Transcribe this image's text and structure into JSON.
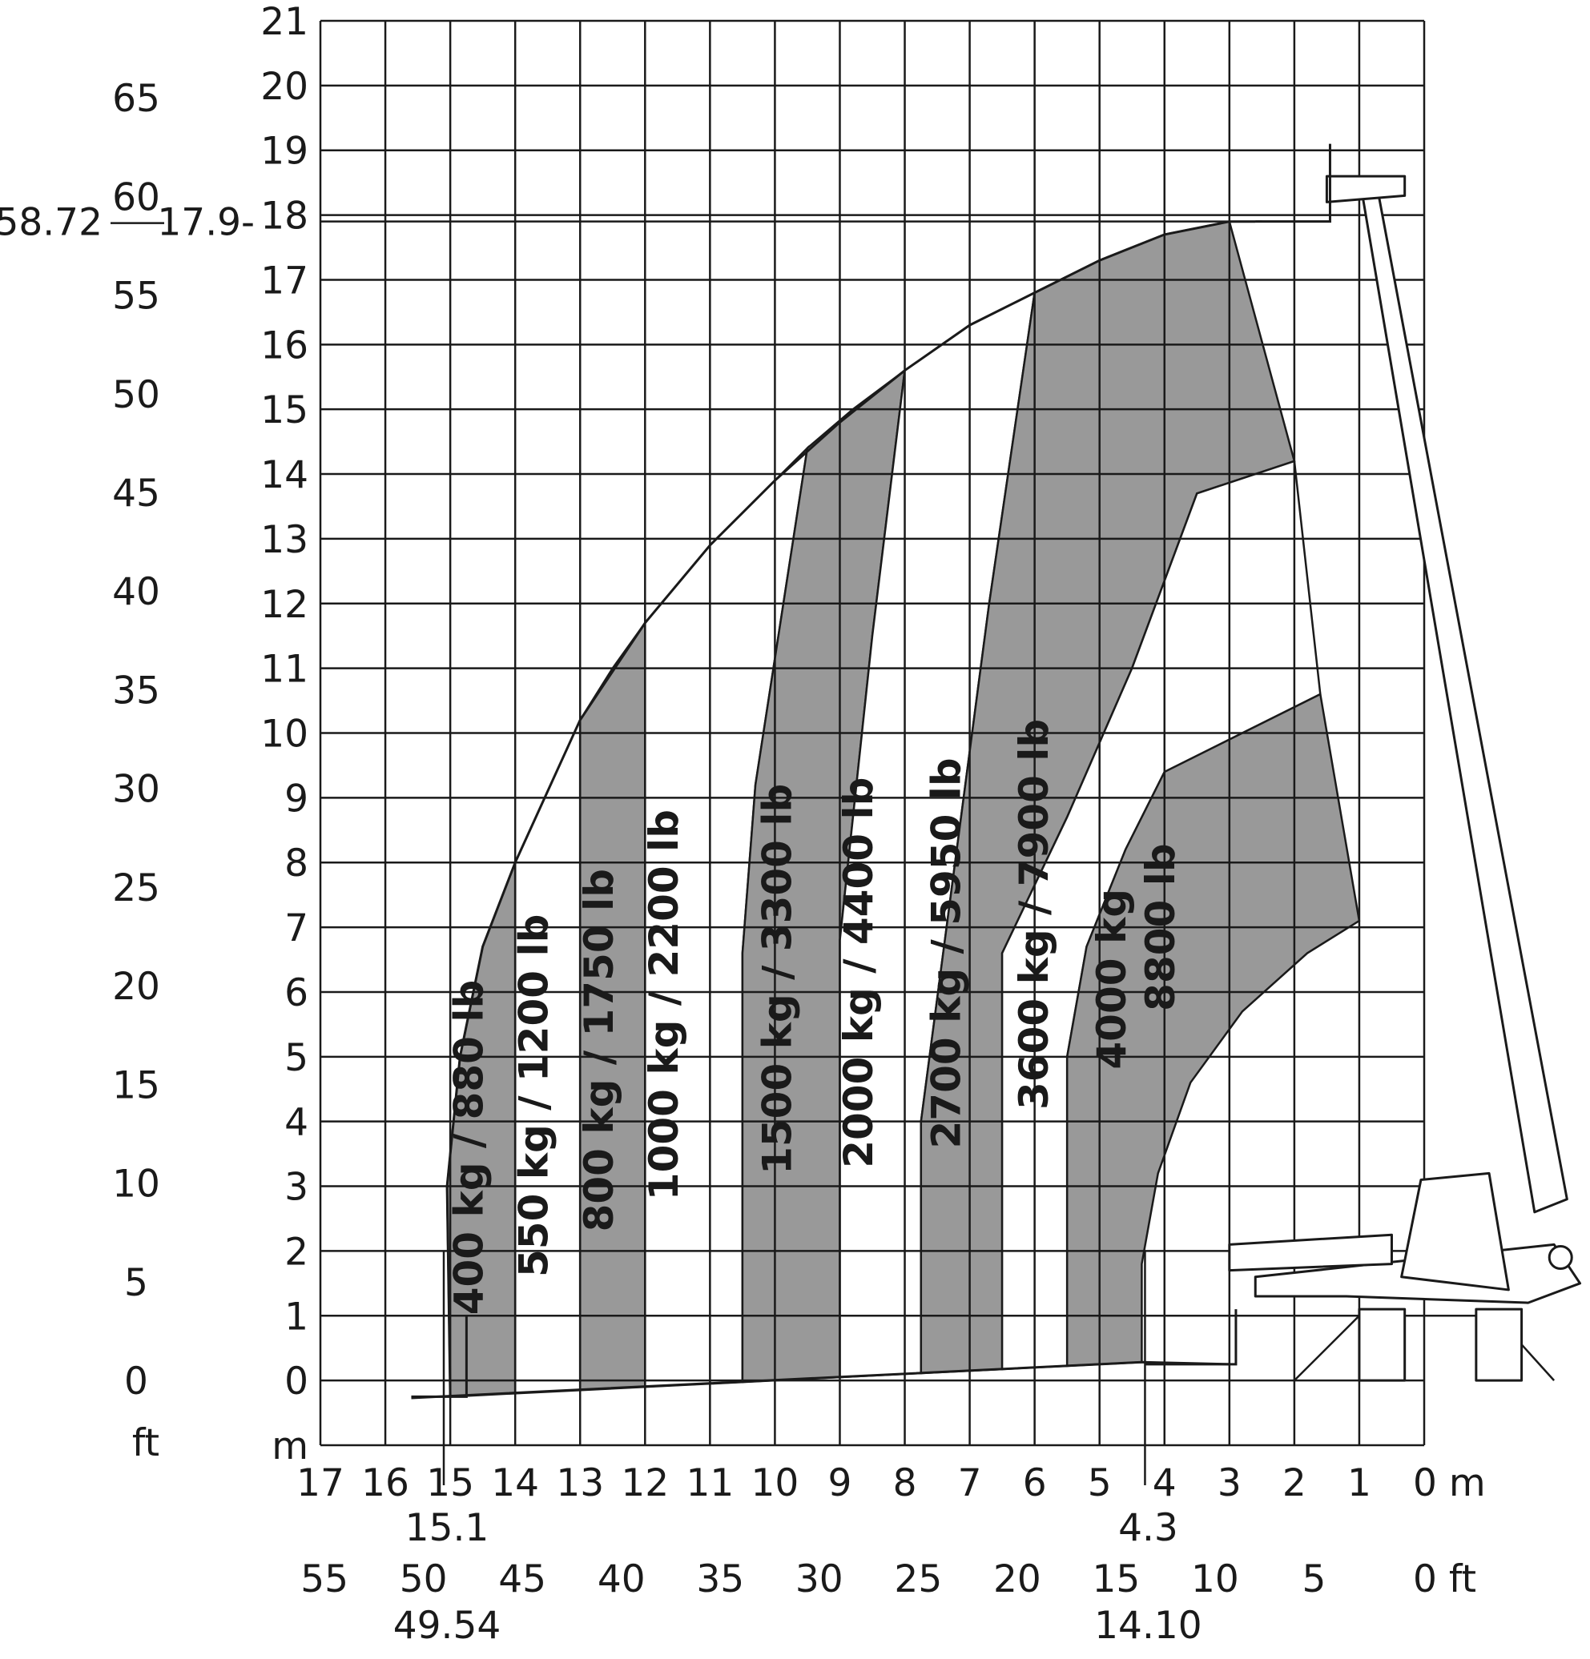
{
  "chart_data": {
    "type": "area",
    "title": "",
    "x_axis": {
      "unit_m": "m",
      "unit_ft": "ft",
      "range_m": [
        0,
        17
      ],
      "ticks_m": [
        "17",
        "16",
        "15",
        "14",
        "13",
        "12",
        "11",
        "10",
        "9",
        "8",
        "7",
        "6",
        "5",
        "4",
        "3",
        "2",
        "1",
        "0 m"
      ],
      "ticks_ft": [
        "55",
        "50",
        "45",
        "40",
        "35",
        "30",
        "25",
        "20",
        "15",
        "10",
        "5",
        "0 ft"
      ],
      "markers": [
        {
          "value_m": "15.1",
          "value_ft": "49.54"
        },
        {
          "value_m": "4.3",
          "value_ft": "14.10"
        }
      ]
    },
    "y_axis": {
      "unit_m": "m",
      "unit_ft": "ft",
      "range_m": [
        -1,
        21
      ],
      "ticks_m": [
        "0",
        "1",
        "2",
        "3",
        "4",
        "5",
        "6",
        "7",
        "8",
        "9",
        "10",
        "11",
        "12",
        "13",
        "14",
        "15",
        "16",
        "17",
        "18",
        "19",
        "20",
        "21"
      ],
      "ticks_ft": [
        "0",
        "5",
        "10",
        "15",
        "20",
        "25",
        "30",
        "35",
        "40",
        "45",
        "50",
        "55",
        "60",
        "65"
      ],
      "max_height": {
        "value_m": "17.9",
        "value_ft": "58.72"
      }
    },
    "grid": true,
    "zones": [
      {
        "label": "400 kg / 880 lb",
        "shaded": true,
        "outer": [
          [
            15.0,
            0
          ],
          [
            14.6,
            7
          ],
          [
            14.0,
            8.0
          ]
        ],
        "inner": [
          [
            14.0,
            0
          ],
          [
            14.0,
            8.0
          ]
        ]
      },
      {
        "label": "550 kg / 1200 lb",
        "shaded": false,
        "outer": [
          [
            14.0,
            8.0
          ],
          [
            13.0,
            10.2
          ]
        ],
        "inner": [
          [
            13.0,
            0
          ],
          [
            13.0,
            10.2
          ]
        ]
      },
      {
        "label": "800 kg / 1750 lb",
        "shaded": true,
        "outer": [
          [
            13.0,
            10.2
          ],
          [
            12.0,
            11.7
          ]
        ],
        "inner": [
          [
            12.0,
            0
          ],
          [
            12.0,
            11.7
          ]
        ]
      },
      {
        "label": "1000 kg / 2200 lb",
        "shaded": false,
        "outer": [
          [
            12.0,
            11.7
          ],
          [
            9.5,
            14.4
          ]
        ],
        "inner": [
          [
            10.5,
            0
          ],
          [
            10.5,
            6.6
          ],
          [
            9.5,
            14.4
          ]
        ]
      },
      {
        "label": "1500 kg / 3300 lb",
        "shaded": true,
        "outer": [
          [
            9.5,
            14.4
          ],
          [
            8.0,
            15.6
          ]
        ],
        "inner": [
          [
            9.0,
            0
          ],
          [
            9.0,
            6.5
          ],
          [
            8.0,
            15.6
          ]
        ]
      },
      {
        "label": "2000 kg / 4400 lb",
        "shaded": false,
        "outer": [
          [
            8.0,
            15.6
          ],
          [
            6.0,
            16.8
          ]
        ],
        "inner": [
          [
            7.75,
            0
          ],
          [
            7.75,
            4
          ],
          [
            6.0,
            16.8
          ]
        ]
      },
      {
        "label": "2700 kg / 5950 lb",
        "shaded": true,
        "outer": [
          [
            6.0,
            16.8
          ],
          [
            3.0,
            17.9
          ]
        ],
        "inner": [
          [
            6.5,
            0
          ],
          [
            6.5,
            6.6
          ],
          [
            3.5,
            13.7
          ],
          [
            2.0,
            14.2
          ]
        ]
      },
      {
        "label": "3600 kg / 7900 lb",
        "shaded": false,
        "outer": [
          [
            2.0,
            14.2
          ],
          [
            1.0,
            7.1
          ]
        ],
        "inner": [
          [
            5.5,
            0
          ],
          [
            5.5,
            5.0
          ],
          [
            4.0,
            9.4
          ],
          [
            1.6,
            10.6
          ]
        ]
      },
      {
        "label": "4000 kg\n8800 lb",
        "shaded": true,
        "outer": [
          [
            1.6,
            10.6
          ],
          [
            1.0,
            7.1
          ]
        ],
        "inner": [
          [
            4.0,
            0
          ],
          [
            4.4,
            3.0
          ],
          [
            2.5,
            6.0
          ],
          [
            1.0,
            7.1
          ]
        ]
      }
    ],
    "colors": {
      "shaded": "#999999",
      "unshaded": "#ffffff",
      "lines": "#1a1a1a"
    }
  }
}
